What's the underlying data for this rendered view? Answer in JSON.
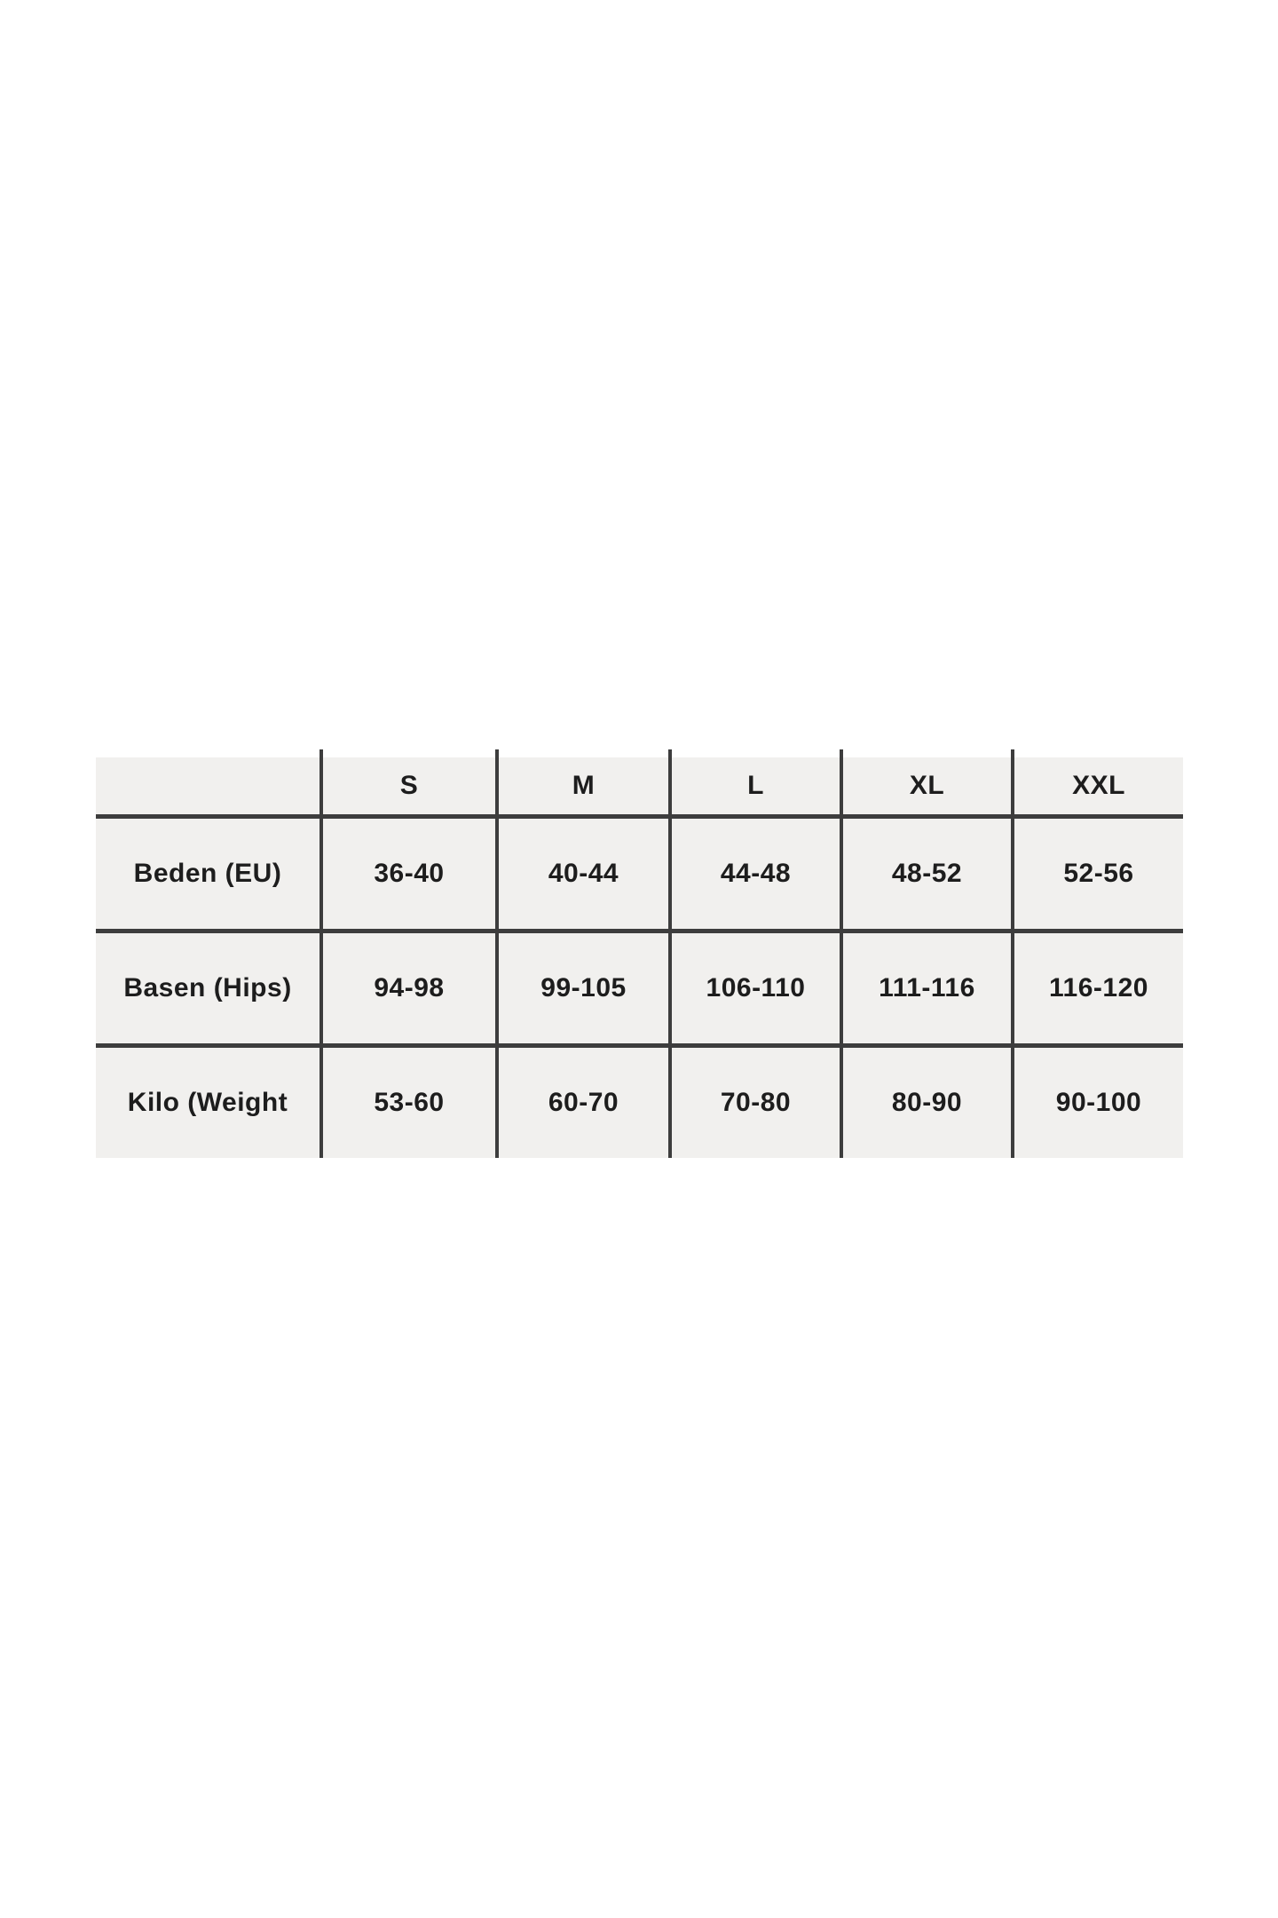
{
  "colors": {
    "page_background": "#ffffff",
    "cell_background": "#f1f0ee",
    "grid_line": "#3d3d3d",
    "text": "#1d1d1d"
  },
  "chart_data": {
    "type": "table",
    "columns": [
      "",
      "S",
      "M",
      "L",
      "XL",
      "XXL"
    ],
    "rows": [
      {
        "label": "Beden (EU)",
        "values": [
          "36-40",
          "40-44",
          "44-48",
          "48-52",
          "52-56"
        ]
      },
      {
        "label": "Basen (Hips)",
        "values": [
          "94-98",
          "99-105",
          "106-110",
          "111-116",
          "116-120"
        ]
      },
      {
        "label": "Kilo (Weight",
        "values": [
          "53-60",
          "60-70",
          "70-80",
          "80-90",
          "90-100"
        ]
      }
    ],
    "layout": {
      "grid_lines": "internal only, no outer border",
      "header_position": "top row",
      "label_position": "left column"
    }
  }
}
